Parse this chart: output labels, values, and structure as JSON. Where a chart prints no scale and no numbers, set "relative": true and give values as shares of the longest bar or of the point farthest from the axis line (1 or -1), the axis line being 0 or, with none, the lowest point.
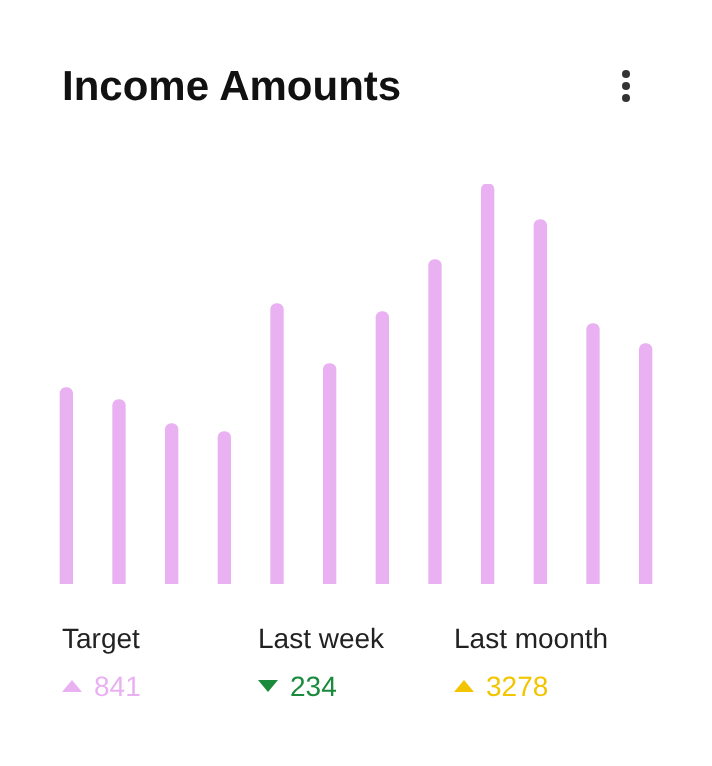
{
  "chart_data": {
    "type": "bar",
    "title": "Income Amounts",
    "relative": true,
    "categories": [
      null,
      null,
      null,
      null,
      null,
      null,
      null,
      null,
      null,
      null,
      null,
      null
    ],
    "values": [
      0.49,
      0.46,
      0.4,
      0.38,
      0.7,
      0.55,
      0.68,
      0.81,
      1,
      0.91,
      0.65,
      0.6
    ],
    "color": "#e9b1f2",
    "annotations": [
      "Target",
      "841",
      "Last week",
      "234",
      "Last moonth",
      "3278"
    ]
  }
}
